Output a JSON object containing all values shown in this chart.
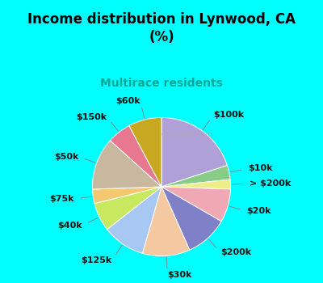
{
  "title": "Income distribution in Lynwood, CA\n(%)",
  "subtitle": "Multirace residents",
  "title_color": "#000000",
  "subtitle_color": "#00a896",
  "bg_color": "#00ffff",
  "chart_bg_color": "#dff2e8",
  "labels": [
    "$100k",
    "$10k",
    "> $200k",
    "$20k",
    "$200k",
    "$30k",
    "$125k",
    "$40k",
    "$75k",
    "$50k",
    "$150k",
    "$60k"
  ],
  "values": [
    18,
    3,
    2,
    7,
    9,
    10,
    9,
    6,
    3,
    11,
    5,
    7
  ],
  "colors": [
    "#b0a0d8",
    "#88cc88",
    "#eeee88",
    "#f0a8b4",
    "#8080c8",
    "#f4c8a0",
    "#a8c8f4",
    "#c8e860",
    "#f4c870",
    "#c8b8a0",
    "#e87890",
    "#c8a820"
  ],
  "wedge_edge_color": "#ffffff",
  "watermark": "City-Data.com",
  "title_fontsize": 12,
  "subtitle_fontsize": 10,
  "label_fontsize": 8
}
